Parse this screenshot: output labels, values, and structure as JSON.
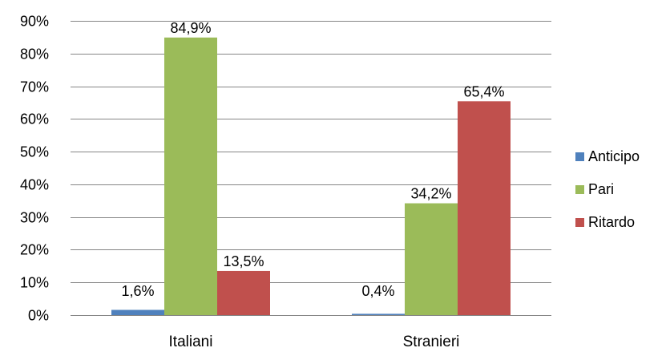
{
  "chart_data": {
    "type": "bar",
    "categories": [
      "Italiani",
      "Stranieri"
    ],
    "series": [
      {
        "name": "Anticipo",
        "color": "#4f81bd",
        "values": [
          1.6,
          0.4
        ],
        "labels": [
          "1,6%",
          "0,4%"
        ]
      },
      {
        "name": "Pari",
        "color": "#9bbb59",
        "values": [
          84.9,
          34.2
        ],
        "labels": [
          "84,9%",
          "34,2%"
        ]
      },
      {
        "name": "Ritardo",
        "color": "#c0504d",
        "values": [
          13.5,
          65.4
        ],
        "labels": [
          "13,5%",
          "65,4%"
        ]
      }
    ],
    "ylim": [
      0,
      90
    ],
    "yticks": [
      0,
      10,
      20,
      30,
      40,
      50,
      60,
      70,
      80,
      90
    ],
    "ytick_labels": [
      "0%",
      "10%",
      "20%",
      "30%",
      "40%",
      "50%",
      "60%",
      "70%",
      "80%",
      "90%"
    ],
    "grid": true,
    "legend_position": "right",
    "title": "",
    "xlabel": "",
    "ylabel": ""
  }
}
